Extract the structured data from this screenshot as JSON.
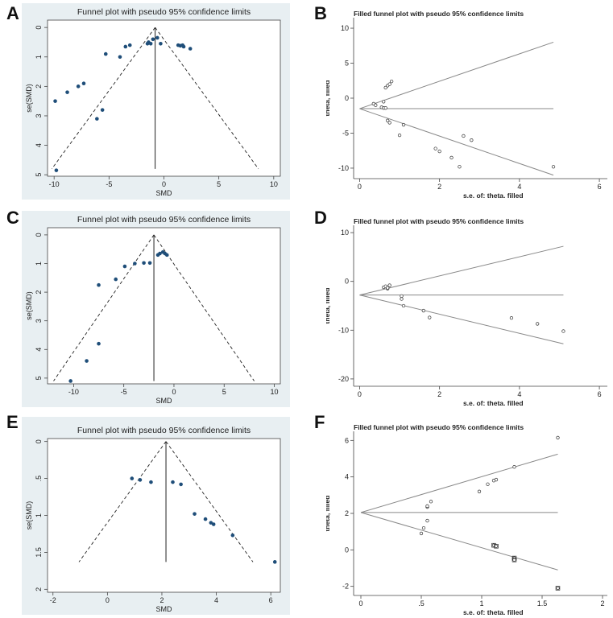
{
  "panel_labels": [
    "A",
    "B",
    "C",
    "D",
    "E",
    "F"
  ],
  "colors": {
    "left_bg": "#e8eff2",
    "point_fill": "#1f4e79",
    "line": "#222222",
    "ci_line": "#888888"
  },
  "chart_data": [
    {
      "id": "A",
      "type": "scatter",
      "style": "funnel",
      "title": "Funnel plot with pseudo 95% confidence limits",
      "xlabel": "SMD",
      "ylabel": "se(SMD)",
      "xlim": [
        -10.6,
        10.6
      ],
      "ylim": [
        -0.25,
        5.05
      ],
      "y_reversed": true,
      "xticks": [
        -10,
        -5,
        0,
        5,
        10
      ],
      "xtick_labels": [
        "-10",
        "-5",
        "0",
        "5",
        "10"
      ],
      "yticks": [
        0,
        1,
        2,
        3,
        4,
        5
      ],
      "ytick_labels": [
        "0",
        "1",
        "2",
        "3",
        "4",
        "5"
      ],
      "center": -0.8,
      "funnel_max_se": 4.8,
      "points": [
        {
          "x": -9.8,
          "y": 4.85
        },
        {
          "x": -9.9,
          "y": 2.5
        },
        {
          "x": -8.8,
          "y": 2.2
        },
        {
          "x": -7.8,
          "y": 2.0
        },
        {
          "x": -7.3,
          "y": 1.9
        },
        {
          "x": -6.1,
          "y": 3.1
        },
        {
          "x": -5.6,
          "y": 2.8
        },
        {
          "x": -5.3,
          "y": 0.9
        },
        {
          "x": -4.0,
          "y": 1.0
        },
        {
          "x": -3.5,
          "y": 0.65
        },
        {
          "x": -3.1,
          "y": 0.6
        },
        {
          "x": -1.5,
          "y": 0.55
        },
        {
          "x": -1.4,
          "y": 0.5
        },
        {
          "x": -1.2,
          "y": 0.55
        },
        {
          "x": -1.0,
          "y": 0.4
        },
        {
          "x": -0.6,
          "y": 0.35
        },
        {
          "x": -0.3,
          "y": 0.55
        },
        {
          "x": 1.3,
          "y": 0.6
        },
        {
          "x": 1.5,
          "y": 0.62
        },
        {
          "x": 1.7,
          "y": 0.6
        },
        {
          "x": 1.8,
          "y": 0.65
        },
        {
          "x": 2.4,
          "y": 0.72
        }
      ]
    },
    {
      "id": "B",
      "type": "scatter",
      "style": "filled_funnel",
      "title": "Filled funnel plot with pseudo 95% confidence limits",
      "xlabel": "s.e. of: theta, filled",
      "ylabel": "theta, filled",
      "xlim": [
        -0.15,
        6.2
      ],
      "ylim": [
        -11.5,
        11.5
      ],
      "xticks": [
        0,
        2,
        4,
        6
      ],
      "xtick_labels": [
        "0",
        "2",
        "4",
        "6"
      ],
      "yticks": [
        -10,
        -5,
        0,
        5,
        10
      ],
      "ytick_labels": [
        "-10",
        "-5",
        "0",
        "5",
        "10"
      ],
      "intercept": -1.5,
      "upper_end": [
        4.85,
        8.0
      ],
      "lower_end": [
        4.85,
        -11.0
      ],
      "ref_end": 4.85,
      "points": [
        {
          "x": 0.35,
          "y": -0.8
        },
        {
          "x": 0.4,
          "y": -1.0
        },
        {
          "x": 0.55,
          "y": -1.3
        },
        {
          "x": 0.6,
          "y": -1.4
        },
        {
          "x": 0.65,
          "y": -1.4
        },
        {
          "x": 0.6,
          "y": -0.5
        },
        {
          "x": 0.65,
          "y": 1.5
        },
        {
          "x": 0.7,
          "y": 1.8
        },
        {
          "x": 0.75,
          "y": 2.0
        },
        {
          "x": 0.8,
          "y": 2.4
        },
        {
          "x": 0.7,
          "y": -3.2
        },
        {
          "x": 0.75,
          "y": -3.5
        },
        {
          "x": 1.0,
          "y": -5.3
        },
        {
          "x": 1.1,
          "y": -3.8
        },
        {
          "x": 1.9,
          "y": -7.2
        },
        {
          "x": 2.0,
          "y": -7.6
        },
        {
          "x": 2.3,
          "y": -8.5
        },
        {
          "x": 2.5,
          "y": -9.8
        },
        {
          "x": 2.6,
          "y": -5.4
        },
        {
          "x": 2.8,
          "y": -6.0
        },
        {
          "x": 4.85,
          "y": -9.8
        }
      ]
    },
    {
      "id": "C",
      "type": "scatter",
      "style": "funnel",
      "title": "Funnel plot with pseudo 95% confidence limits",
      "xlabel": "SMD",
      "ylabel": "se(SMD)",
      "xlim": [
        -12.6,
        10.6
      ],
      "ylim": [
        -0.25,
        5.2
      ],
      "y_reversed": true,
      "xticks": [
        -10,
        -5,
        0,
        5,
        10
      ],
      "xtick_labels": [
        "-10",
        "-5",
        "0",
        "5",
        "10"
      ],
      "yticks": [
        0,
        1,
        2,
        3,
        4,
        5
      ],
      "ytick_labels": [
        "0",
        "1",
        "2",
        "3",
        "4",
        "5"
      ],
      "center": -2.0,
      "funnel_max_se": 5.1,
      "points": [
        {
          "x": -10.3,
          "y": 5.1
        },
        {
          "x": -8.7,
          "y": 4.4
        },
        {
          "x": -7.5,
          "y": 3.8
        },
        {
          "x": -7.5,
          "y": 1.75
        },
        {
          "x": -5.8,
          "y": 1.55
        },
        {
          "x": -4.9,
          "y": 1.1
        },
        {
          "x": -3.9,
          "y": 1.0
        },
        {
          "x": -3.0,
          "y": 0.98
        },
        {
          "x": -2.4,
          "y": 0.98
        },
        {
          "x": -1.6,
          "y": 0.7
        },
        {
          "x": -1.4,
          "y": 0.65
        },
        {
          "x": -1.1,
          "y": 0.6
        },
        {
          "x": -0.9,
          "y": 0.65
        },
        {
          "x": -0.7,
          "y": 0.7
        }
      ]
    },
    {
      "id": "D",
      "type": "scatter",
      "style": "filled_funnel",
      "title": "Filled funnel plot with pseudo 95% confidence limits",
      "xlabel": "s.e. of: theta, filled",
      "ylabel": "theta, filled",
      "xlim": [
        -0.15,
        6.2
      ],
      "ylim": [
        -21.5,
        11.5
      ],
      "xticks": [
        0,
        2,
        4,
        6
      ],
      "xtick_labels": [
        "0",
        "2",
        "4",
        "6"
      ],
      "yticks": [
        -20,
        -10,
        0,
        10
      ],
      "ytick_labels": [
        "-20",
        "-10",
        "0",
        "10"
      ],
      "intercept": -2.8,
      "upper_end": [
        5.1,
        7.2
      ],
      "lower_end": [
        5.1,
        -12.8
      ],
      "ref_end": 5.1,
      "points": [
        {
          "x": 0.6,
          "y": -1.2
        },
        {
          "x": 0.65,
          "y": -1.0
        },
        {
          "x": 0.7,
          "y": -1.5
        },
        {
          "x": 0.75,
          "y": -0.8
        },
        {
          "x": 0.7,
          "y": -1.3
        },
        {
          "x": 1.05,
          "y": -3.0
        },
        {
          "x": 1.05,
          "y": -3.6
        },
        {
          "x": 1.1,
          "y": -5.0
        },
        {
          "x": 1.6,
          "y": -6.0
        },
        {
          "x": 1.75,
          "y": -7.4
        },
        {
          "x": 3.8,
          "y": -7.5
        },
        {
          "x": 4.45,
          "y": -8.7
        },
        {
          "x": 5.1,
          "y": -10.2
        }
      ]
    },
    {
      "id": "E",
      "type": "scatter",
      "style": "funnel",
      "title": "Funnel plot with pseudo 95% confidence limits",
      "xlabel": "SMD",
      "ylabel": "se(SMD)",
      "xlim": [
        -2.2,
        6.35
      ],
      "ylim": [
        -0.04,
        2.04
      ],
      "y_reversed": true,
      "xticks": [
        -2,
        0,
        2,
        4,
        6
      ],
      "xtick_labels": [
        "-2",
        "0",
        "2",
        "4",
        "6"
      ],
      "yticks": [
        0,
        0.5,
        1,
        1.5,
        2
      ],
      "ytick_labels": [
        "0",
        ".5",
        "1",
        "1.5",
        "2"
      ],
      "center": 2.15,
      "funnel_max_se": 1.63,
      "points": [
        {
          "x": 0.9,
          "y": 0.5
        },
        {
          "x": 1.2,
          "y": 0.52
        },
        {
          "x": 1.6,
          "y": 0.55
        },
        {
          "x": 2.4,
          "y": 0.55
        },
        {
          "x": 2.7,
          "y": 0.58
        },
        {
          "x": 3.2,
          "y": 0.98
        },
        {
          "x": 3.6,
          "y": 1.05
        },
        {
          "x": 3.8,
          "y": 1.1
        },
        {
          "x": 3.9,
          "y": 1.12
        },
        {
          "x": 4.6,
          "y": 1.27
        },
        {
          "x": 6.15,
          "y": 1.63
        }
      ]
    },
    {
      "id": "F",
      "type": "scatter",
      "style": "filled_funnel",
      "title": "Filled funnel plot with pseudo 95% confidence limits",
      "xlabel": "s.e. of: theta, filled",
      "ylabel": "theta, filled",
      "xlim": [
        -0.06,
        2.04
      ],
      "ylim": [
        -2.5,
        6.5
      ],
      "xticks": [
        0,
        0.5,
        1,
        1.5,
        2
      ],
      "xtick_labels": [
        "0",
        ".5",
        "1",
        "1.5",
        "2"
      ],
      "yticks": [
        -2,
        0,
        2,
        4,
        6
      ],
      "ytick_labels": [
        "-2",
        "0",
        "2",
        "4",
        "6"
      ],
      "intercept": 2.05,
      "upper_end": [
        1.63,
        5.25
      ],
      "lower_end": [
        1.63,
        -1.1
      ],
      "ref_end": 1.63,
      "points": [
        {
          "x": 0.5,
          "y": 0.9
        },
        {
          "x": 0.52,
          "y": 1.2
        },
        {
          "x": 0.55,
          "y": 1.6
        },
        {
          "x": 0.55,
          "y": 2.35
        },
        {
          "x": 0.58,
          "y": 2.65
        },
        {
          "x": 0.98,
          "y": 3.2
        },
        {
          "x": 1.05,
          "y": 3.6
        },
        {
          "x": 1.1,
          "y": 3.8
        },
        {
          "x": 1.12,
          "y": 3.85
        },
        {
          "x": 1.27,
          "y": 4.55
        },
        {
          "x": 1.63,
          "y": 6.15
        },
        {
          "x": 0.55,
          "y": 2.4
        }
      ],
      "filled_points": [
        {
          "x": 1.1,
          "y": 0.25
        },
        {
          "x": 1.12,
          "y": 0.2
        },
        {
          "x": 1.27,
          "y": -0.45
        },
        {
          "x": 1.27,
          "y": -0.55
        },
        {
          "x": 1.63,
          "y": -2.1
        }
      ]
    }
  ]
}
